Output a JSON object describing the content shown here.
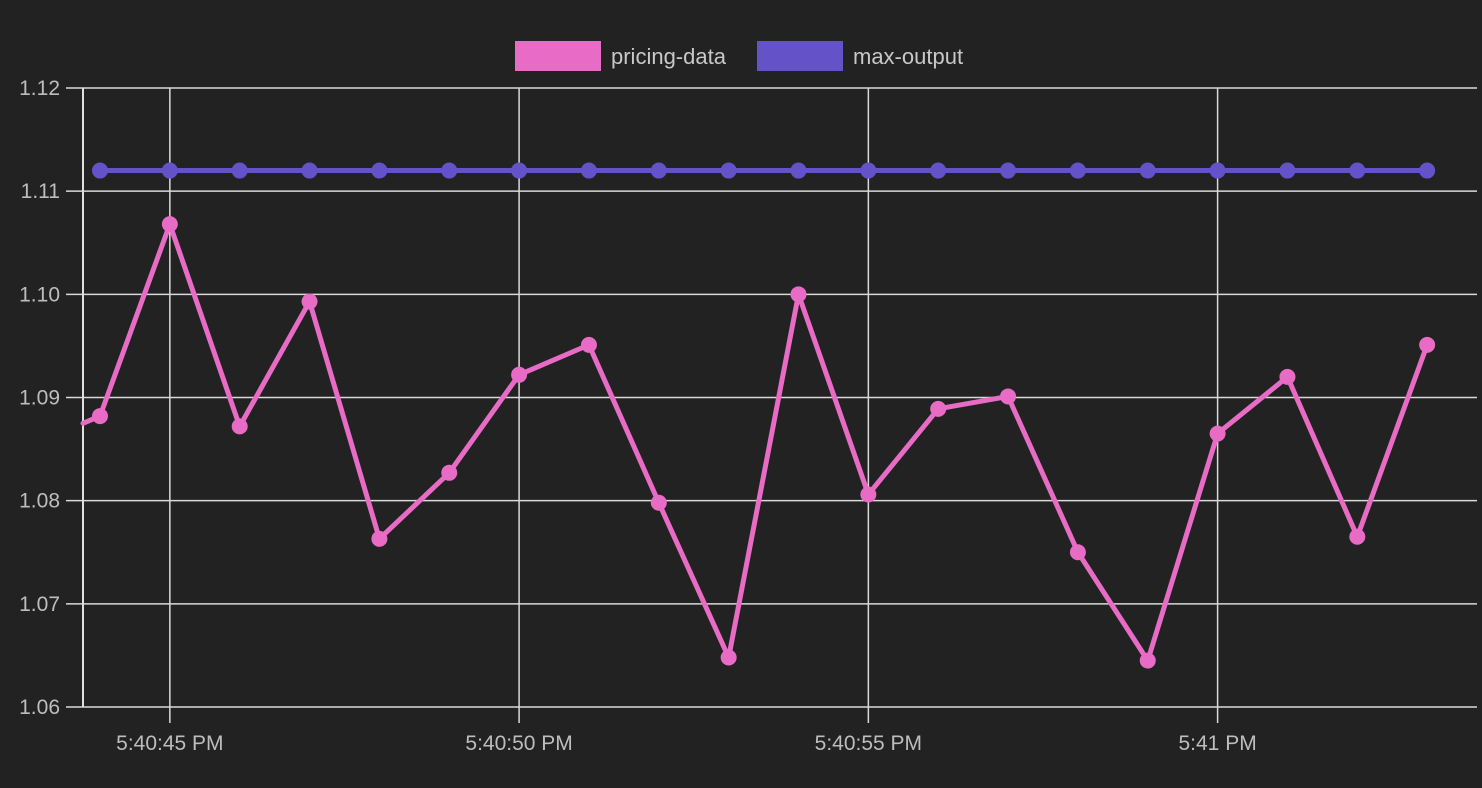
{
  "chart_data": {
    "type": "line",
    "title": "",
    "xlabel": "",
    "ylabel": "",
    "x": [
      "5:40:44 PM",
      "5:40:45 PM",
      "5:40:46 PM",
      "5:40:47 PM",
      "5:40:48 PM",
      "5:40:49 PM",
      "5:40:50 PM",
      "5:40:51 PM",
      "5:40:52 PM",
      "5:40:53 PM",
      "5:40:54 PM",
      "5:40:55 PM",
      "5:40:56 PM",
      "5:40:57 PM",
      "5:40:58 PM",
      "5:40:59 PM",
      "5:41:00 PM",
      "5:41:01 PM",
      "5:41:02 PM",
      "5:41:03 PM"
    ],
    "x_ticks": [
      "5:40:45 PM",
      "5:40:50 PM",
      "5:40:55 PM",
      "5:41 PM"
    ],
    "ylim": [
      1.06,
      1.12
    ],
    "y_ticks": [
      "1.06",
      "1.07",
      "1.08",
      "1.09",
      "1.10",
      "1.11",
      "1.12"
    ],
    "grid": true,
    "legend_position": "top",
    "series": [
      {
        "name": "pricing-data",
        "color": "#e86bc5",
        "lead_in_value": 1.0875,
        "values": [
          1.0882,
          1.1068,
          1.0872,
          1.0993,
          1.0763,
          1.0827,
          1.0922,
          1.0951,
          1.0798,
          1.0648,
          1.1,
          1.0806,
          1.0889,
          1.0901,
          1.075,
          1.0645,
          1.0865,
          1.092,
          1.0765,
          1.0951
        ]
      },
      {
        "name": "max-output",
        "color": "#6352c8",
        "values": [
          1.112,
          1.112,
          1.112,
          1.112,
          1.112,
          1.112,
          1.112,
          1.112,
          1.112,
          1.112,
          1.112,
          1.112,
          1.112,
          1.112,
          1.112,
          1.112,
          1.112,
          1.112,
          1.112,
          1.112
        ]
      }
    ]
  }
}
